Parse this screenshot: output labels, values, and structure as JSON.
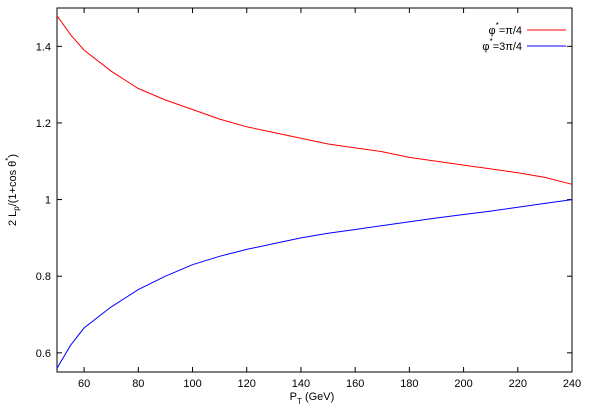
{
  "chart_data": {
    "type": "line",
    "title": "",
    "xlabel": "P_T (GeV)",
    "ylabel": "2 L_p/(1+cos θ*)",
    "xlim": [
      50,
      240
    ],
    "ylim": [
      0.55,
      1.5
    ],
    "xticks": [
      60,
      80,
      100,
      120,
      140,
      160,
      180,
      200,
      220,
      240
    ],
    "yticks": [
      0.6,
      0.8,
      1,
      1.2,
      1.4
    ],
    "grid": false,
    "legend_position": "top-right",
    "series": [
      {
        "name": "φ*=π/4",
        "color": "#ff0000",
        "x": [
          50,
          55,
          60,
          70,
          80,
          90,
          100,
          110,
          120,
          130,
          140,
          150,
          160,
          170,
          180,
          190,
          200,
          210,
          220,
          230,
          240
        ],
        "y": [
          1.48,
          1.43,
          1.39,
          1.335,
          1.29,
          1.26,
          1.235,
          1.21,
          1.19,
          1.175,
          1.16,
          1.145,
          1.135,
          1.125,
          1.11,
          1.1,
          1.09,
          1.08,
          1.07,
          1.058,
          1.04
        ]
      },
      {
        "name": "φ*=3π/4",
        "color": "#0000ff",
        "x": [
          50,
          55,
          60,
          70,
          80,
          90,
          100,
          110,
          120,
          130,
          140,
          150,
          160,
          170,
          180,
          190,
          200,
          210,
          220,
          230,
          240
        ],
        "y": [
          0.56,
          0.62,
          0.665,
          0.72,
          0.765,
          0.8,
          0.83,
          0.852,
          0.87,
          0.885,
          0.9,
          0.912,
          0.922,
          0.932,
          0.942,
          0.952,
          0.961,
          0.97,
          0.98,
          0.99,
          1.0
        ]
      }
    ]
  }
}
